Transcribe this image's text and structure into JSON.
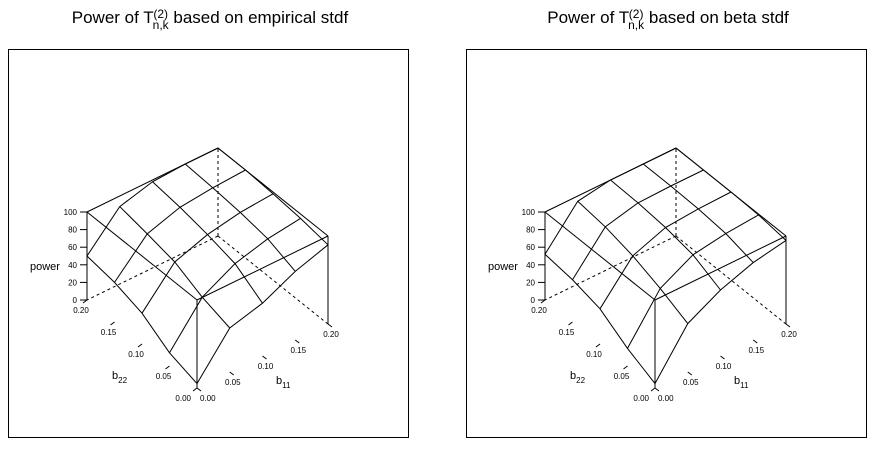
{
  "chart_data": [
    {
      "type": "surface",
      "title_main": "Power of T",
      "title_sup": "(2)",
      "title_sub": "n,k",
      "title_rest": " based on empirical stdf",
      "zlabel": "power",
      "xlabel_main": "b",
      "xlabel_sub": "11",
      "ylabel_main": "b",
      "ylabel_sub": "22",
      "x": [
        0.0,
        0.05,
        0.1,
        0.15,
        0.2
      ],
      "y": [
        0.0,
        0.05,
        0.1,
        0.15,
        0.2
      ],
      "xticks": [
        "0.00",
        "0.05",
        "0.10",
        "0.15",
        "0.20"
      ],
      "yticks": [
        "0.00",
        "0.05",
        "0.10",
        "0.15",
        "0.20"
      ],
      "zticks": [
        "0",
        "20",
        "40",
        "60",
        "80",
        "100"
      ],
      "zlim": [
        0,
        100
      ],
      "z_rows_by_y": [
        [
          5,
          50,
          60,
          78,
          90
        ],
        [
          15,
          60,
          80,
          90,
          95
        ],
        [
          35,
          75,
          88,
          95,
          98
        ],
        [
          45,
          82,
          94,
          98,
          100
        ],
        [
          50,
          88,
          98,
          100,
          100
        ]
      ]
    },
    {
      "type": "surface",
      "title_main": "Power of T",
      "title_sup": "(2)",
      "title_sub": "n,k",
      "title_rest": " based on beta stdf",
      "zlabel": "power",
      "xlabel_main": "b",
      "xlabel_sub": "11",
      "ylabel_main": "b",
      "ylabel_sub": "22",
      "x": [
        0.0,
        0.05,
        0.1,
        0.15,
        0.2
      ],
      "y": [
        0.0,
        0.05,
        0.1,
        0.15,
        0.2
      ],
      "xticks": [
        "0.00",
        "0.05",
        "0.10",
        "0.15",
        "0.20"
      ],
      "yticks": [
        "0.00",
        "0.05",
        "0.10",
        "0.15",
        "0.20"
      ],
      "zticks": [
        "0",
        "20",
        "40",
        "60",
        "80",
        "100"
      ],
      "zlim": [
        0,
        100
      ],
      "z_rows_by_y": [
        [
          5,
          55,
          75,
          88,
          95
        ],
        [
          20,
          70,
          90,
          96,
          99
        ],
        [
          40,
          82,
          96,
          99,
          100
        ],
        [
          48,
          90,
          99,
          100,
          100
        ],
        [
          52,
          94,
          100,
          100,
          100
        ]
      ]
    }
  ]
}
